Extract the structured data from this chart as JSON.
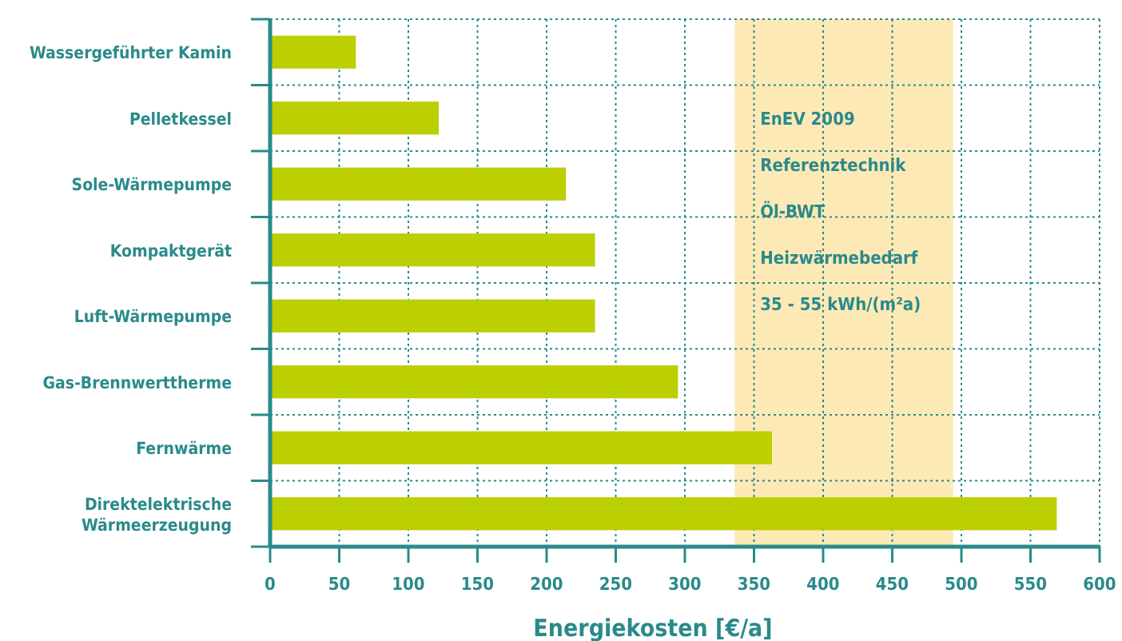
{
  "chart_data": {
    "type": "bar",
    "orientation": "horizontal",
    "xlabel": "Energiekosten [€/a]",
    "categories": [
      "Wassergeführter Kamin",
      "Pelletkessel",
      "Sole-Wärmepumpe",
      "Kompaktgerät",
      "Luft-Wärmepumpe",
      "Gas-Brennwerttherme",
      "Fernwärme",
      "Direktelektrische Wärmeerzeugung"
    ],
    "series": [
      {
        "color": "#bccf00",
        "values": [
          62,
          122,
          214,
          235,
          235,
          295,
          363,
          569
        ]
      }
    ],
    "xlim": [
      0,
      600
    ],
    "xticks": [
      0,
      50,
      100,
      150,
      200,
      250,
      300,
      350,
      400,
      450,
      500,
      550,
      600
    ],
    "bands": [
      {
        "axis": "x",
        "from": 336,
        "to": 494,
        "color": "#fce9b5"
      }
    ],
    "annotations": [
      "EnEV 2009",
      "Referenztechnik",
      "Öl-BWT",
      "Heizwärmebedarf",
      "35 - 55 kWh/(m²a)"
    ],
    "grid": true
  }
}
